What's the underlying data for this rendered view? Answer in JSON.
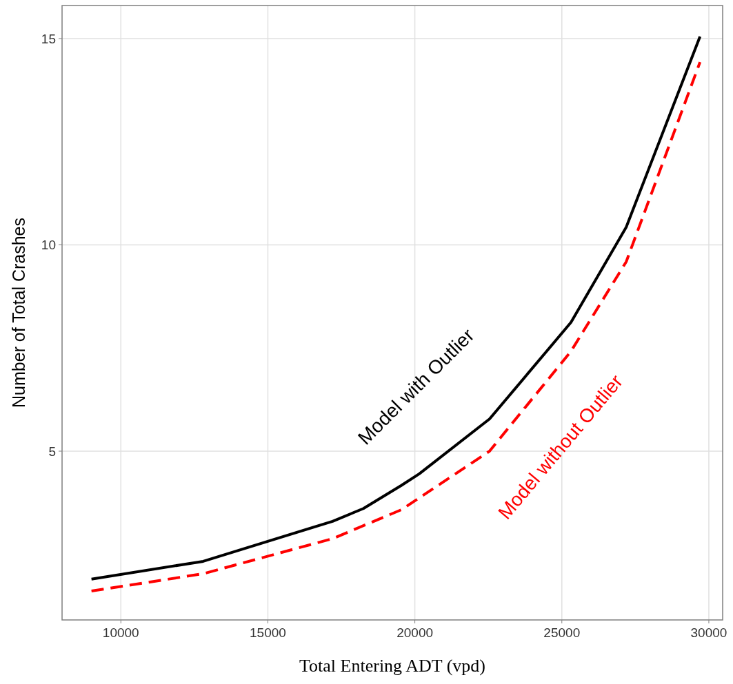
{
  "chart_data": {
    "type": "line",
    "xlabel": "Total Entering ADT (vpd)",
    "ylabel": "Number of Total Crashes",
    "xlim": [
      8000,
      30470
    ],
    "ylim": [
      0.91,
      15.8
    ],
    "xticks": [
      10000,
      15000,
      20000,
      25000,
      30000
    ],
    "yticks": [
      5,
      10,
      15
    ],
    "grid": true,
    "marker": "none",
    "series": [
      {
        "color": "#000000",
        "line_style": "solid",
        "x": [
          9000,
          12800,
          17200,
          18250,
          19540,
          20150,
          22540,
          25310,
          27190,
          29700
        ],
        "values": [
          1.9,
          2.33,
          3.3,
          3.61,
          4.17,
          4.45,
          5.78,
          8.12,
          10.43,
          15.05
        ]
      },
      {
        "color": "#ff0000",
        "line_style": "dashed",
        "x": [
          9000,
          12800,
          17200,
          19540,
          22540,
          25310,
          27190,
          29700
        ],
        "values": [
          1.61,
          2.03,
          2.88,
          3.58,
          5.0,
          7.42,
          9.59,
          14.43
        ]
      }
    ],
    "annotations": [
      "Model with Outlier",
      "Model without Outlier"
    ]
  }
}
